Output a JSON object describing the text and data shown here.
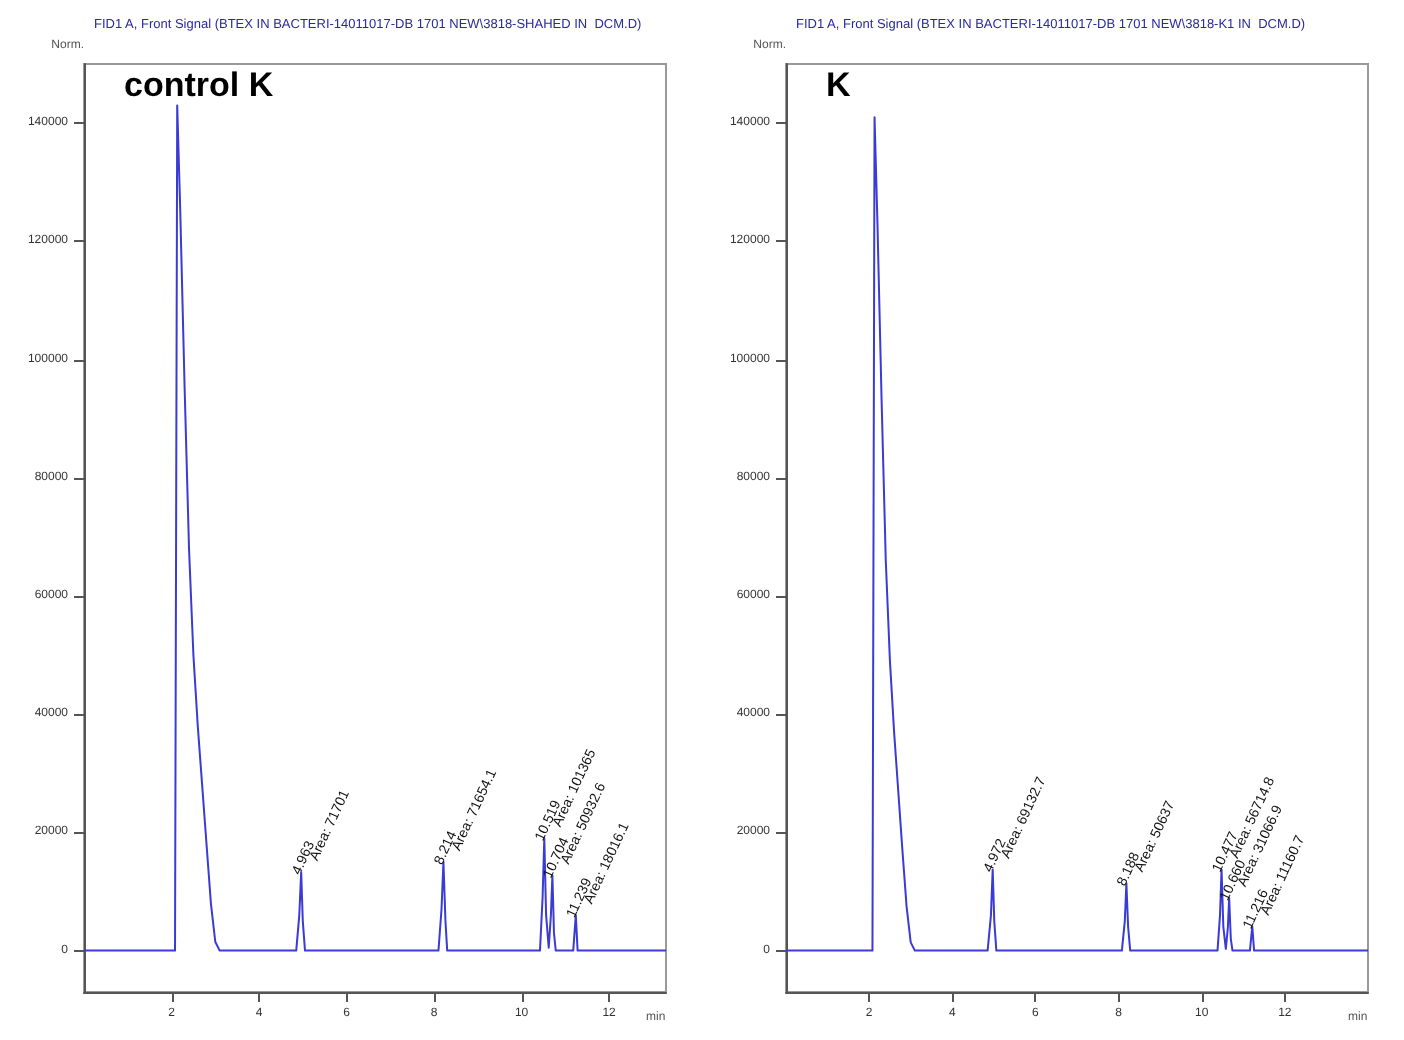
{
  "chart_data": [
    {
      "type": "line",
      "title": "FID1 A, Front Signal (BTEX IN BACTERI-14011017-DB 1701 NEW\\3818-SHAHED IN  DCM.D)",
      "xlabel": "min",
      "ylabel": "Norm.",
      "xlim": [
        0,
        13.3
      ],
      "ylim": [
        -7000,
        150000
      ],
      "xticks": [
        2,
        4,
        6,
        8,
        10,
        12
      ],
      "yticks": [
        0,
        20000,
        40000,
        60000,
        80000,
        100000,
        120000,
        140000
      ],
      "annotations": [
        "control K",
        {
          "text": "4.963",
          "x": 4.963,
          "y": 13300
        },
        {
          "text": "Area: 71701",
          "x": 4.963,
          "y": 13300
        },
        {
          "text": "8.214",
          "x": 8.214,
          "y": 15000
        },
        {
          "text": "Area: 71654.1",
          "x": 8.214,
          "y": 15000
        },
        {
          "text": "10.519",
          "x": 10.519,
          "y": 19000
        },
        {
          "text": "Area: 101365",
          "x": 10.519,
          "y": 19000
        },
        {
          "text": "10.704",
          "x": 10.704,
          "y": 12700
        },
        {
          "text": "Area: 50932.6",
          "x": 10.704,
          "y": 12700
        },
        {
          "text": "11.239",
          "x": 11.239,
          "y": 6000
        },
        {
          "text": "Area: 18016.1",
          "x": 11.239,
          "y": 6000
        }
      ],
      "series": [
        {
          "color": "#3a3ad6",
          "x": [
            0,
            2.08,
            2.13,
            2.2,
            2.3,
            2.4,
            2.5,
            2.6,
            2.7,
            2.8,
            2.9,
            3.0,
            3.1,
            4.85,
            4.92,
            4.963,
            5.0,
            5.05,
            8.1,
            8.17,
            8.214,
            8.26,
            8.3,
            10.42,
            10.48,
            10.519,
            10.56,
            10.62,
            10.67,
            10.704,
            10.74,
            10.78,
            11.18,
            11.239,
            11.28,
            13.3
          ],
          "values": [
            0,
            0,
            143000,
            125000,
            95000,
            68000,
            50000,
            38000,
            28000,
            18000,
            8000,
            1500,
            0,
            0,
            6000,
            13300,
            5000,
            0,
            0,
            7000,
            15000,
            5000,
            0,
            0,
            9000,
            19000,
            6000,
            500,
            6000,
            12700,
            3000,
            0,
            0,
            6000,
            0,
            0
          ]
        }
      ]
    },
    {
      "type": "line",
      "title": "FID1 A, Front Signal (BTEX IN BACTERI-14011017-DB 1701 NEW\\3818-K1 IN  DCM.D)",
      "xlabel": "min",
      "ylabel": "Norm.",
      "xlim": [
        0,
        14
      ],
      "ylim": [
        -7000,
        150000
      ],
      "xticks": [
        2,
        4,
        6,
        8,
        10,
        12
      ],
      "yticks": [
        0,
        20000,
        40000,
        60000,
        80000,
        100000,
        120000,
        140000
      ],
      "annotations": [
        "K",
        {
          "text": "4.972",
          "x": 4.972,
          "y": 13700
        },
        {
          "text": "Area: 69132.7",
          "x": 4.972,
          "y": 13700
        },
        {
          "text": "8.188",
          "x": 8.188,
          "y": 11400
        },
        {
          "text": "Area: 50637",
          "x": 8.188,
          "y": 11400
        },
        {
          "text": "10.477",
          "x": 10.477,
          "y": 13700
        },
        {
          "text": "Area: 56714.8",
          "x": 10.477,
          "y": 13700
        },
        {
          "text": "10.660",
          "x": 10.66,
          "y": 8900
        },
        {
          "text": "Area: 31066.9",
          "x": 10.66,
          "y": 8900
        },
        {
          "text": "11.216",
          "x": 11.216,
          "y": 4100
        },
        {
          "text": "Area: 11160.7",
          "x": 11.216,
          "y": 4100
        }
      ],
      "series": [
        {
          "color": "#3a3ad6",
          "x": [
            0,
            2.08,
            2.13,
            2.2,
            2.3,
            2.4,
            2.5,
            2.6,
            2.7,
            2.8,
            2.9,
            3.0,
            3.1,
            4.85,
            4.93,
            4.972,
            5.01,
            5.06,
            8.08,
            8.15,
            8.188,
            8.23,
            8.28,
            10.38,
            10.44,
            10.477,
            10.52,
            10.58,
            10.63,
            10.66,
            10.7,
            10.74,
            11.16,
            11.216,
            11.26,
            14
          ],
          "values": [
            0,
            0,
            141000,
            123000,
            93000,
            66000,
            49000,
            37000,
            27000,
            17000,
            7500,
            1400,
            0,
            0,
            6000,
            13700,
            5000,
            0,
            0,
            5000,
            11400,
            4000,
            0,
            0,
            6000,
            13700,
            4000,
            300,
            4000,
            8900,
            2000,
            0,
            0,
            4100,
            0,
            0
          ]
        }
      ]
    }
  ]
}
